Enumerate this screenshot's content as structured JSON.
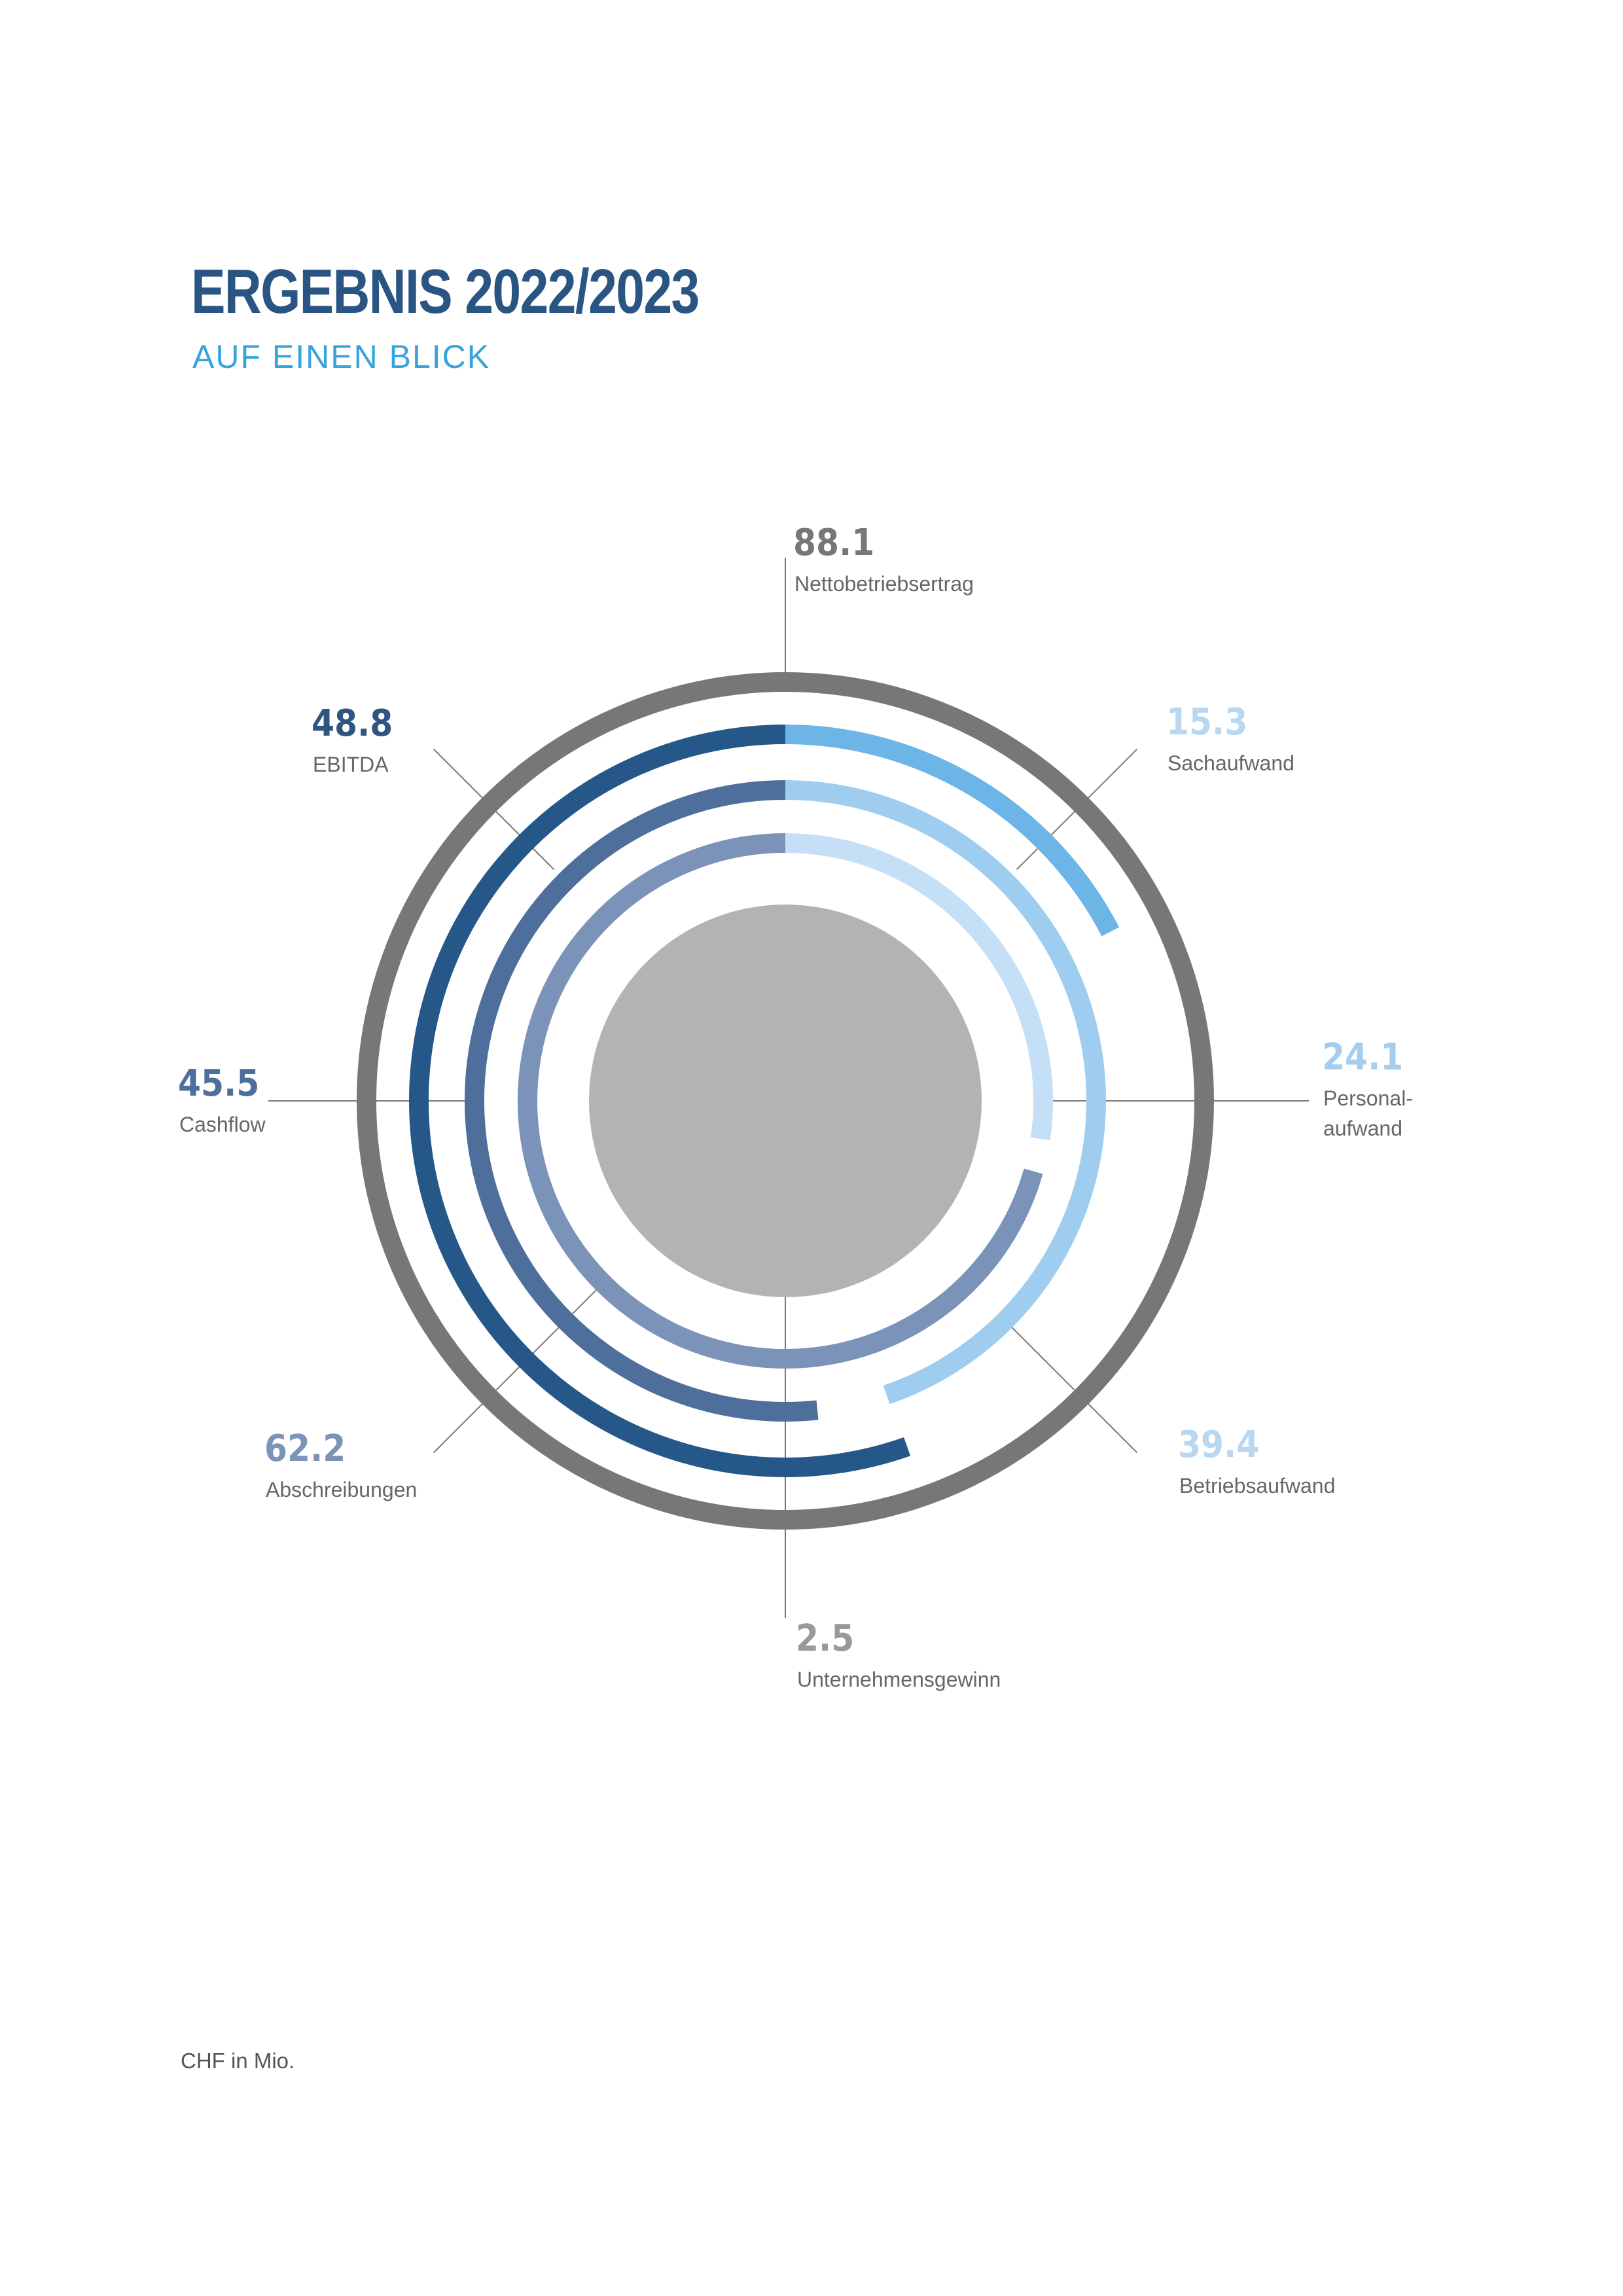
{
  "header": {
    "title": "ERGEBNIS 2022/2023",
    "subtitle": "AUF EINEN BLICK"
  },
  "footnote": "CHF in Mio.",
  "chart_data": {
    "type": "radial",
    "title": "ERGEBNIS 2022/2023",
    "subtitle": "AUF EINEN BLICK",
    "unit": "CHF in Mio.",
    "items": [
      {
        "id": "nettobetriebsertrag",
        "value": 88.1,
        "label": "Nettobetriebsertrag",
        "color": "#777777"
      },
      {
        "id": "sachaufwand",
        "value": 15.3,
        "label": "Sachaufwand",
        "color": "#6cb5e6"
      },
      {
        "id": "personalaufwand",
        "value": 24.1,
        "label": "Personal-\naufwand",
        "color": "#c4dff6"
      },
      {
        "id": "betriebsaufwand",
        "value": 39.4,
        "label": "Betriebsaufwand",
        "color": "#9fcdf0"
      },
      {
        "id": "unternehmensgewinn",
        "value": 2.5,
        "label": "Unternehmensgewinn",
        "color": "#b3b3b3"
      },
      {
        "id": "abschreibungen",
        "value": 62.2,
        "label": "Abschreibungen",
        "color": "#7b93b9"
      },
      {
        "id": "cashflow",
        "value": 45.5,
        "label": "Cashflow",
        "color": "#4e6f9c"
      },
      {
        "id": "ebitda",
        "value": 48.8,
        "label": "EBITDA",
        "color": "#255889"
      }
    ]
  }
}
